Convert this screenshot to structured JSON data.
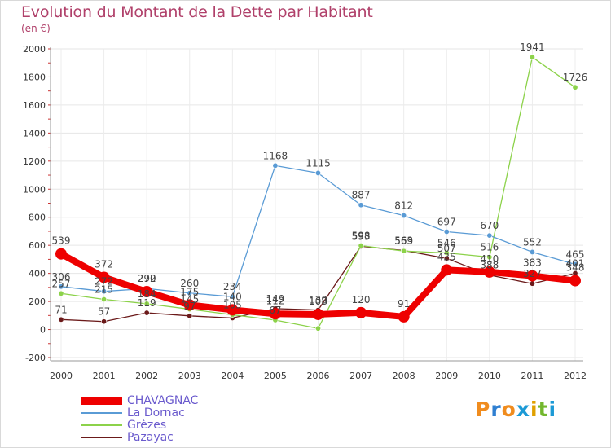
{
  "title": "Evolution du Montant de la Dette par Habitant",
  "subtitle": "(en €)",
  "brand": {
    "letters": [
      "P",
      "r",
      "o",
      "x",
      "i",
      "t",
      "i"
    ],
    "colors": [
      "#f08c1e",
      "#2f7fd1",
      "#f08c1e",
      "#1c9ad6",
      "#e0a000",
      "#73b72e",
      "#1c9ad6"
    ]
  },
  "chart_data": {
    "type": "line",
    "title": "Evolution du Montant de la Dette par Habitant",
    "subtitle": "(en €)",
    "xlabel": "",
    "ylabel": "",
    "x": [
      "2000",
      "2001",
      "2002",
      "2003",
      "2004",
      "2005",
      "2006",
      "2007",
      "2008",
      "2009",
      "2010",
      "2011",
      "2012"
    ],
    "ylim": [
      -200,
      2000
    ],
    "yticks": [
      -200,
      0,
      200,
      400,
      600,
      800,
      1000,
      1200,
      1400,
      1600,
      1800,
      2000
    ],
    "grid": true,
    "legend": "bottom-left",
    "series": [
      {
        "name": "CHAVAGNAC",
        "color": "#ee0000",
        "width": 8,
        "values": [
          539,
          372,
          270,
          175,
          140,
          112,
          108,
          120,
          91,
          425,
          410,
          383,
          348
        ],
        "labels": [
          "539",
          "372",
          "270",
          "175",
          "140",
          "112",
          "108",
          "120",
          "91",
          "425",
          "410",
          "383",
          "348"
        ]
      },
      {
        "name": "La Dornac",
        "color": "#5a9bd5",
        "width": 1.3,
        "values": [
          306,
          272,
          292,
          260,
          234,
          1168,
          1115,
          887,
          812,
          697,
          670,
          552,
          465
        ],
        "labels": [
          "306",
          "272",
          "292",
          "260",
          "234",
          "1168",
          "1115",
          "887",
          "812",
          "697",
          "670",
          "552",
          "465"
        ]
      },
      {
        "name": "Grèzes",
        "color": "#8cd24a",
        "width": 1.3,
        "values": [
          257,
          215,
          184,
          145,
          105,
          67,
          8,
          598,
          559,
          546,
          516,
          1941,
          1726
        ],
        "labels": [
          "257",
          "215",
          "184",
          "145",
          "105",
          "67",
          "",
          "598",
          "559",
          "546",
          "516",
          "1941",
          "1726"
        ]
      },
      {
        "name": "Pazayac",
        "color": "#6b1a1a",
        "width": 1.3,
        "values": [
          71,
          57,
          119,
          97,
          82,
          149,
          139,
          593,
          563,
          507,
          388,
          327,
          401
        ],
        "labels": [
          "71",
          "57",
          "119",
          "97",
          "",
          "149",
          "139",
          "593",
          "563",
          "507",
          "388",
          "327",
          "401"
        ]
      }
    ]
  }
}
